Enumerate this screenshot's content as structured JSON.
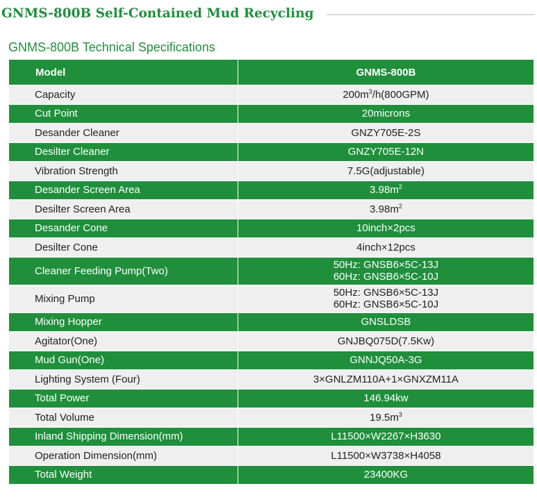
{
  "header": {
    "title": "GNMS-800B Self-Contained Mud Recycling",
    "subtitle": "GNMS-800B Technical Specifications"
  },
  "table": {
    "col_model": "Model",
    "col_value": "GNMS-800B",
    "rows": [
      {
        "label": "Capacity",
        "value": [
          "200m",
          "3",
          "/h(800GPM)"
        ],
        "shade": "white"
      },
      {
        "label": "Cut Point",
        "value": [
          "20microns"
        ],
        "shade": "green"
      },
      {
        "label": "Desander Cleaner",
        "value": [
          "GNZY705E-2S"
        ],
        "shade": "white"
      },
      {
        "label": "Desilter Cleaner",
        "value": [
          "GNZY705E-12N"
        ],
        "shade": "green"
      },
      {
        "label": "Vibration Strength",
        "value": [
          "7.5G(adjustable)"
        ],
        "shade": "white"
      },
      {
        "label": "Desander Screen Area",
        "value": [
          "3.98m",
          "2",
          ""
        ],
        "shade": "green"
      },
      {
        "label": "Desilter Screen Area",
        "value": [
          "3.98m",
          "2",
          ""
        ],
        "shade": "white"
      },
      {
        "label": "Desander Cone",
        "value": [
          "10inch×2pcs"
        ],
        "shade": "green"
      },
      {
        "label": "Desilter Cone",
        "value": [
          "4inch×12pcs"
        ],
        "shade": "white"
      },
      {
        "label": "Cleaner Feeding Pump(Two)",
        "lines": [
          "50Hz: GNSB6×5C-13J",
          "60Hz: GNSB6×5C-10J"
        ],
        "shade": "green"
      },
      {
        "label": "Mixing Pump",
        "lines": [
          "50Hz: GNSB6×5C-13J",
          "60Hz: GNSB6×5C-10J"
        ],
        "shade": "white"
      },
      {
        "label": "Mixing Hopper",
        "value": [
          "GNSLDSB"
        ],
        "shade": "green"
      },
      {
        "label": "Agitator(One)",
        "value": [
          "GNJBQ075D(7.5Kw)"
        ],
        "shade": "white"
      },
      {
        "label": "Mud Gun(One)",
        "value": [
          "GNNJQ50A-3G"
        ],
        "shade": "green"
      },
      {
        "label": "Lighting System (Four)",
        "value": [
          "3×GNLZM110A+1×GNXZM11A"
        ],
        "shade": "white"
      },
      {
        "label": "Total Power",
        "value": [
          "146.94kw"
        ],
        "shade": "green"
      },
      {
        "label": "Total Volume",
        "value": [
          "19.5m",
          "3",
          ""
        ],
        "shade": "white"
      },
      {
        "label": "Inland Shipping Dimension(mm)",
        "value": [
          "L11500×W2267×H3630"
        ],
        "shade": "green"
      },
      {
        "label": "Operation Dimension(mm)",
        "value": [
          "L11500×W3738×H4058"
        ],
        "shade": "white"
      },
      {
        "label": "Total Weight",
        "value": [
          "23400KG"
        ],
        "shade": "green"
      }
    ]
  },
  "colors": {
    "accent_green": "#1f8f3c",
    "row_light": "#efefef"
  }
}
